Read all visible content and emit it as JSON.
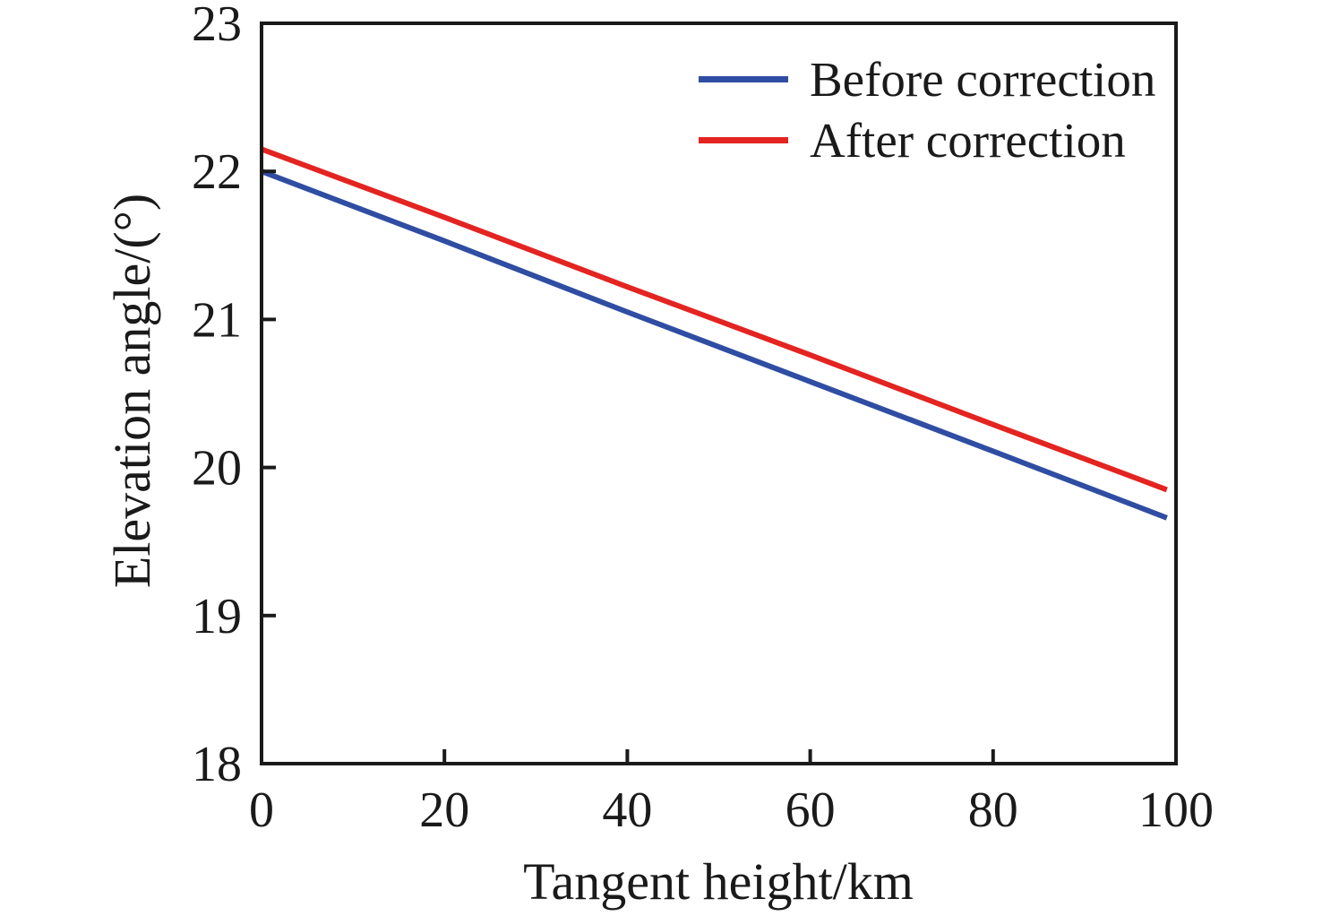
{
  "figure": {
    "background": "#ffffff",
    "axis_color": "#1a1a1a",
    "text_color": "#1a1a1a"
  },
  "chart_data": {
    "type": "line",
    "title": "",
    "xlabel": "Tangent height/km",
    "ylabel": "Elevation angle/(°)",
    "xlim": [
      0,
      100
    ],
    "ylim": [
      18,
      23
    ],
    "x_tick_values": [
      0,
      20,
      40,
      60,
      80,
      100
    ],
    "x_tick_labels": [
      "0",
      "20",
      "40",
      "60",
      "80",
      "100"
    ],
    "y_tick_values": [
      18,
      19,
      20,
      21,
      22,
      23
    ],
    "y_tick_labels": [
      "18",
      "19",
      "20",
      "21",
      "22",
      "23"
    ],
    "grid": false,
    "legend_position": "top-right-inside",
    "x": [
      0,
      20,
      40,
      60,
      80,
      99
    ],
    "series": [
      {
        "name": "Before correction",
        "color": "#2F4DA2",
        "values": [
          22.0,
          21.53,
          21.05,
          20.58,
          20.11,
          19.66
        ]
      },
      {
        "name": "After correction",
        "color": "#E32421",
        "values": [
          22.15,
          21.69,
          21.22,
          20.76,
          20.29,
          19.85
        ]
      }
    ]
  }
}
